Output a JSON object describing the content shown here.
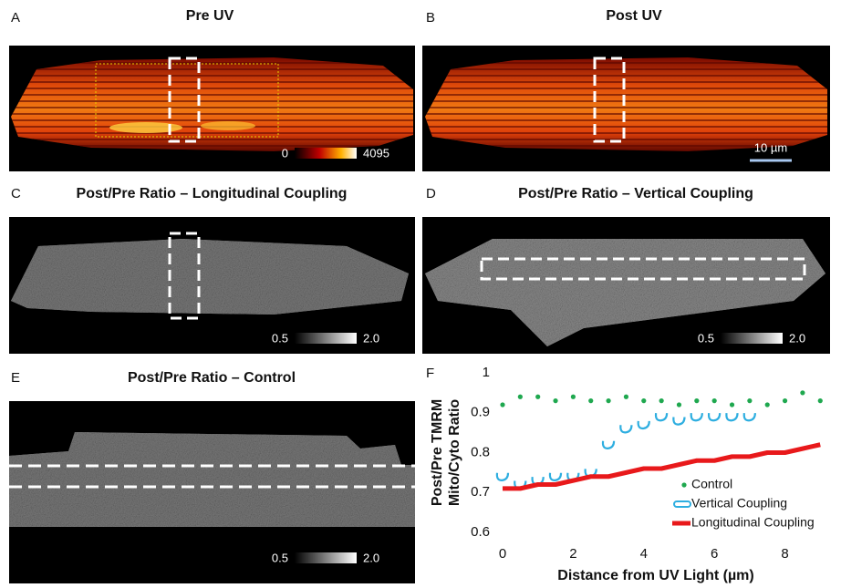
{
  "panels": [
    {
      "label": "A",
      "title": "Pre UV",
      "colorbar": {
        "min": "0",
        "max": "4095"
      }
    },
    {
      "label": "B",
      "title": "Post UV",
      "scale_bar": "10 µm"
    },
    {
      "label": "C",
      "title": "Post/Pre Ratio – Longitudinal Coupling",
      "colorbar": {
        "min": "0.5",
        "max": "2.0"
      }
    },
    {
      "label": "D",
      "title": "Post/Pre Ratio – Vertical Coupling",
      "colorbar": {
        "min": "0.5",
        "max": "2.0"
      }
    },
    {
      "label": "E",
      "title": "Post/Pre Ratio – Control",
      "colorbar": {
        "min": "0.5",
        "max": "2.0"
      }
    },
    {
      "label": "F"
    }
  ],
  "chart_data": {
    "type": "line",
    "x_label": "Distance from UV Light (µm)",
    "y_label": [
      "Post/Pre TMRM",
      "Mito/Cyto Ratio"
    ],
    "x": [
      0,
      0.5,
      1,
      1.5,
      2,
      2.5,
      3,
      3.5,
      4,
      4.5,
      5,
      5.5,
      6,
      6.5,
      7,
      7.5,
      8,
      8.5,
      9
    ],
    "series": [
      {
        "name": "Control",
        "color": "#1fa84f",
        "marker": "dot",
        "values": [
          0.92,
          0.94,
          0.94,
          0.93,
          0.94,
          0.93,
          0.93,
          0.94,
          0.93,
          0.93,
          0.92,
          0.93,
          0.93,
          0.92,
          0.93,
          0.92,
          0.93,
          0.95,
          0.93
        ]
      },
      {
        "name": "Vertical Coupling",
        "color": "#2eaee0",
        "marker": "open",
        "values": [
          0.74,
          0.72,
          0.73,
          0.74,
          0.74,
          0.75,
          0.82,
          0.86,
          0.87,
          0.89,
          0.88,
          0.89,
          0.89,
          0.89,
          0.89,
          null,
          null,
          null,
          null
        ]
      },
      {
        "name": "Longitudinal Coupling",
        "color": "#e8191b",
        "marker": "line",
        "values": [
          0.71,
          0.71,
          0.72,
          0.72,
          0.73,
          0.74,
          0.74,
          0.75,
          0.76,
          0.76,
          0.77,
          0.78,
          0.78,
          0.79,
          0.79,
          0.8,
          0.8,
          0.81,
          0.82
        ]
      }
    ],
    "xlim": [
      0,
      9.2
    ],
    "ylim": [
      0.6,
      1
    ],
    "xticks": [
      0,
      2,
      4,
      6,
      8
    ],
    "yticks": [
      0.6,
      0.7,
      0.8,
      0.9,
      1
    ],
    "legend": "lower right"
  }
}
